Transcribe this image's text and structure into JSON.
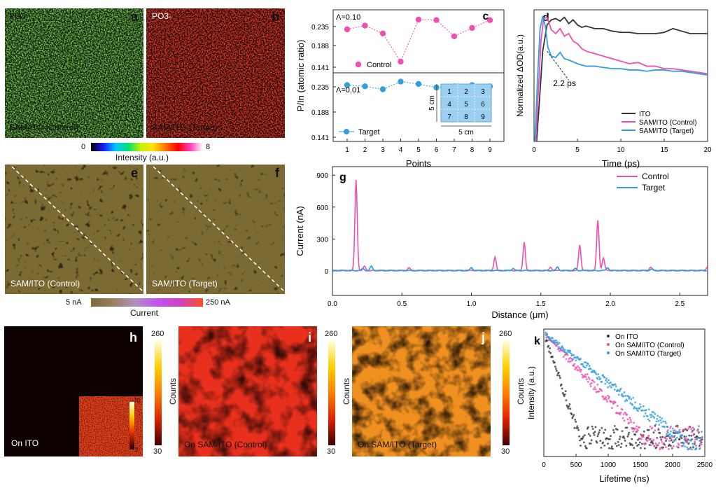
{
  "panels": {
    "a": {
      "label": "a",
      "title": "PO3-",
      "caption": "SAM/ITO (Control)"
    },
    "b": {
      "label": "b",
      "title": "PO3-",
      "caption": "SAM/ITO (Target)"
    },
    "e": {
      "label": "e",
      "caption": "SAM/ITO (Control)"
    },
    "f": {
      "label": "f",
      "caption": "SAM/ITO (Target)"
    },
    "h": {
      "label": "h",
      "caption": "On ITO",
      "inset_max": "70",
      "inset_min": "2"
    },
    "i": {
      "label": "i",
      "caption": "On SAM/ITO (Control)"
    },
    "j": {
      "label": "j",
      "caption": "On SAM/ITO (Target)"
    }
  },
  "colorbars": {
    "intensity": {
      "min": "0",
      "max": "8",
      "title": "Intensity (a.u.)"
    },
    "current": {
      "min": "5 nA",
      "max": "250 nA",
      "title": "Current"
    },
    "counts_h": {
      "max": "260",
      "min": "30",
      "title": "Counts"
    },
    "counts_i": {
      "max": "260",
      "min": "30",
      "title": "Counts"
    },
    "counts_j": {
      "max": "260",
      "min": "30",
      "title": "Counts"
    }
  },
  "colors": {
    "control": "#ef4fae",
    "target": "#2f9fe0",
    "ito": "#333333",
    "current_map": "#7a6a35"
  },
  "chart_data": [
    {
      "id": "c",
      "type": "scatter",
      "label": "c",
      "xlabel": "Points",
      "ylabel": "P/In (atomic ratio)",
      "categories": [
        "1",
        "2",
        "3",
        "4",
        "5",
        "6",
        "7",
        "8",
        "9"
      ],
      "yticks": [
        "0.235",
        "0.188",
        "0.141"
      ],
      "ylim": [
        0.141,
        0.235
      ],
      "series": [
        {
          "name": "Control",
          "annotation": "Λ=0.10",
          "values": [
            0.223,
            0.231,
            0.214,
            0.153,
            0.244,
            0.243,
            0.208,
            0.226,
            0.243
          ]
        },
        {
          "name": "Target",
          "annotation": "Λ=0.01",
          "values": [
            0.222,
            0.22,
            0.215,
            0.228,
            0.224,
            0.218,
            0.22,
            0.222,
            0.22
          ]
        }
      ],
      "inset": {
        "cells": [
          "1",
          "2",
          "3",
          "4",
          "5",
          "6",
          "7",
          "8",
          "9"
        ],
        "width_label": "5 cm",
        "height_label": "5 cm"
      }
    },
    {
      "id": "d",
      "type": "line",
      "label": "d",
      "xlabel": "Time (ps)",
      "ylabel": "Normalized ΔOD(a.u.)",
      "xticks": [
        "0",
        "5",
        "10",
        "15",
        "20"
      ],
      "xlim": [
        0,
        20
      ],
      "ylim": [
        0,
        1.05
      ],
      "annotation": "2.2 ps",
      "series": [
        {
          "name": "ITO",
          "x": [
            0.3,
            0.6,
            1,
            1.5,
            2,
            2.5,
            3,
            3.5,
            4,
            4.5,
            5,
            5.5,
            6,
            7,
            8,
            9,
            10,
            11,
            12,
            13,
            14,
            15,
            16,
            17,
            18,
            19,
            20
          ],
          "values": [
            0.0,
            0.3,
            0.72,
            0.93,
            0.97,
            0.98,
            0.96,
            0.99,
            0.94,
            0.97,
            0.93,
            0.91,
            0.92,
            0.9,
            0.9,
            0.88,
            0.87,
            0.87,
            0.86,
            0.86,
            0.86,
            0.87,
            0.9,
            0.88,
            0.86,
            0.86,
            0.86
          ]
        },
        {
          "name": "SAM/ITO (Control)",
          "x": [
            0.2,
            0.5,
            0.8,
            1.1,
            1.5,
            2,
            2.5,
            3,
            3.5,
            4,
            4.5,
            5,
            5.5,
            6,
            7,
            8,
            9,
            10,
            11,
            12,
            13,
            14,
            15,
            16,
            17,
            18,
            19,
            20
          ],
          "values": [
            0.0,
            0.4,
            0.8,
            0.98,
            0.99,
            0.89,
            0.86,
            0.9,
            0.84,
            0.86,
            0.8,
            0.78,
            0.74,
            0.72,
            0.7,
            0.68,
            0.66,
            0.64,
            0.62,
            0.63,
            0.6,
            0.6,
            0.58,
            0.58,
            0.57,
            0.56,
            0.55,
            0.54
          ]
        },
        {
          "name": "SAM/ITO (Target)",
          "x": [
            0.1,
            0.4,
            0.7,
            1,
            1.3,
            1.6,
            2,
            2.5,
            3,
            3.5,
            4,
            5,
            6,
            7,
            8,
            9,
            10,
            11,
            12,
            13,
            14,
            15,
            16,
            17,
            18,
            19,
            20
          ],
          "values": [
            0.0,
            0.5,
            0.9,
            1.0,
            0.92,
            0.75,
            0.68,
            0.67,
            0.71,
            0.66,
            0.65,
            0.62,
            0.6,
            0.6,
            0.59,
            0.58,
            0.58,
            0.57,
            0.57,
            0.56,
            0.57,
            0.57,
            0.56,
            0.56,
            0.55,
            0.54,
            0.53
          ]
        }
      ]
    },
    {
      "id": "g",
      "type": "line",
      "label": "g",
      "xlabel": "Distance (μm)",
      "ylabel": "Current (nA)",
      "xticks": [
        "0.0",
        "0.5",
        "1.0",
        "1.5",
        "2.0",
        "2.5"
      ],
      "xlim": [
        0,
        2.7
      ],
      "yticks": [
        "0",
        "300",
        "600",
        "900"
      ],
      "ylim": [
        -230,
        980
      ],
      "series": [
        {
          "name": "Control",
          "peaks": [
            [
              0.17,
              850
            ],
            [
              0.23,
              40
            ],
            [
              0.55,
              30
            ],
            [
              1.17,
              130
            ],
            [
              1.38,
              270
            ],
            [
              1.57,
              30
            ],
            [
              1.78,
              240
            ],
            [
              1.91,
              470
            ],
            [
              1.95,
              120
            ],
            [
              2.29,
              35
            ],
            [
              2.7,
              40
            ]
          ]
        },
        {
          "name": "Target",
          "peaks": [
            [
              0.22,
              20
            ],
            [
              0.28,
              40
            ],
            [
              1.0,
              30
            ],
            [
              1.3,
              20
            ],
            [
              1.62,
              35
            ],
            [
              1.75,
              20
            ],
            [
              1.98,
              30
            ],
            [
              2.3,
              15
            ]
          ]
        }
      ]
    },
    {
      "id": "k",
      "type": "scatter",
      "label": "k",
      "xlabel": "Lifetime (ns)",
      "ylabel": "Intensity (a.u.)",
      "xticks": [
        "0",
        "500",
        "1000",
        "1500",
        "2000",
        "2500"
      ],
      "xlim": [
        0,
        2500
      ],
      "series": [
        {
          "name": "On ITO",
          "tau": 150
        },
        {
          "name": "On SAM/ITO (Control)",
          "tau": 420
        },
        {
          "name": "On SAM/ITO (Target)",
          "tau": 560
        }
      ]
    }
  ]
}
